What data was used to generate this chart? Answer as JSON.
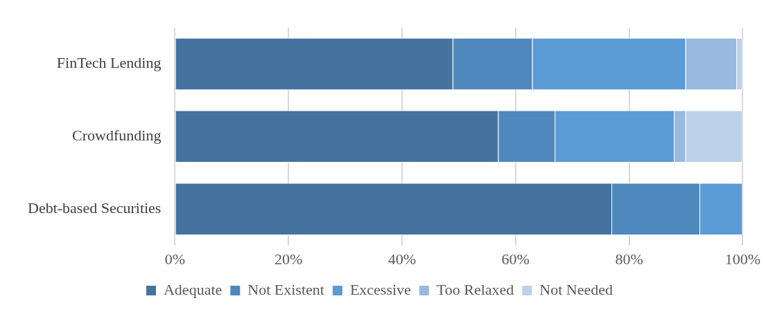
{
  "chart_data": {
    "type": "bar",
    "orientation": "horizontal",
    "stacked": true,
    "categories": [
      "FinTech Lending",
      "Crowdfunding",
      "Debt-based Securities"
    ],
    "series": [
      {
        "name": "Adequate",
        "color": "#44739f",
        "values": [
          49,
          57,
          77
        ]
      },
      {
        "name": "Not Existent",
        "color": "#4f88bc",
        "values": [
          14,
          10,
          15.5
        ]
      },
      {
        "name": "Excessive",
        "color": "#5b9bd5",
        "values": [
          27,
          21,
          7.5
        ]
      },
      {
        "name": "Too Relaxed",
        "color": "#98b9e0",
        "values": [
          9,
          2,
          0
        ]
      },
      {
        "name": "Not Needed",
        "color": "#bdd1eb",
        "values": [
          1,
          10,
          0
        ]
      }
    ],
    "xlim": [
      0,
      100
    ],
    "xticks": [
      {
        "value": 0,
        "label": "0%"
      },
      {
        "value": 20,
        "label": "20%"
      },
      {
        "value": 40,
        "label": "40%"
      },
      {
        "value": 60,
        "label": "60%"
      },
      {
        "value": 80,
        "label": "80%"
      },
      {
        "value": 100,
        "label": "100%"
      }
    ],
    "grid": "x",
    "legend": "bottom"
  }
}
